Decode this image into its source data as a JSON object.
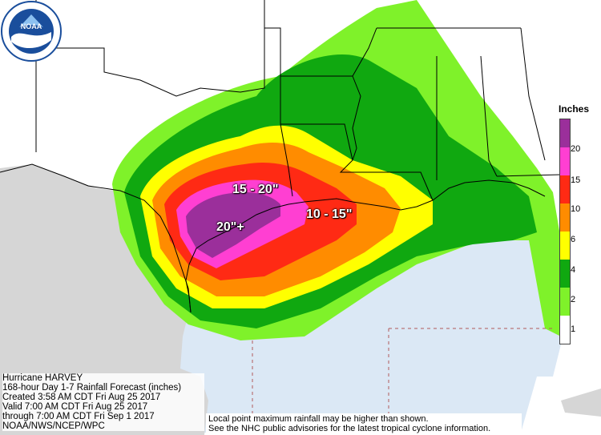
{
  "map": {
    "storm_title": "Hurricane HARVEY",
    "product": "168-hour Day 1-7 Rainfall Forecast (inches)",
    "created": "Created 3:58 AM CDT Fri Aug 25 2017",
    "valid": "Valid 7:00 AM CDT Fri Aug 25 2017",
    "through": "through 7:00 AM CDT Fri Sep 1 2017",
    "credit": "NOAA/NWS/NCEP/WPC"
  },
  "labels": {
    "center_max": "20\"+",
    "upper_range": "15 - 20\"",
    "east_range": "10 - 15\""
  },
  "legend": {
    "title": "Inches",
    "ticks": [
      "20",
      "15",
      "10",
      "6",
      "4",
      "2",
      "1"
    ],
    "colors": [
      "#9b2f9b",
      "#ff3fd2",
      "#ff2a14",
      "#ff8c00",
      "#ffff00",
      "#10a810",
      "#7ff22a",
      "#ffffff"
    ]
  },
  "notes": {
    "line1": "Local point maximum rainfall may be higher than shown.",
    "line2": "See the NHC public advisories for the latest tropical cyclone information."
  },
  "logo": {
    "text": "NOAA"
  }
}
